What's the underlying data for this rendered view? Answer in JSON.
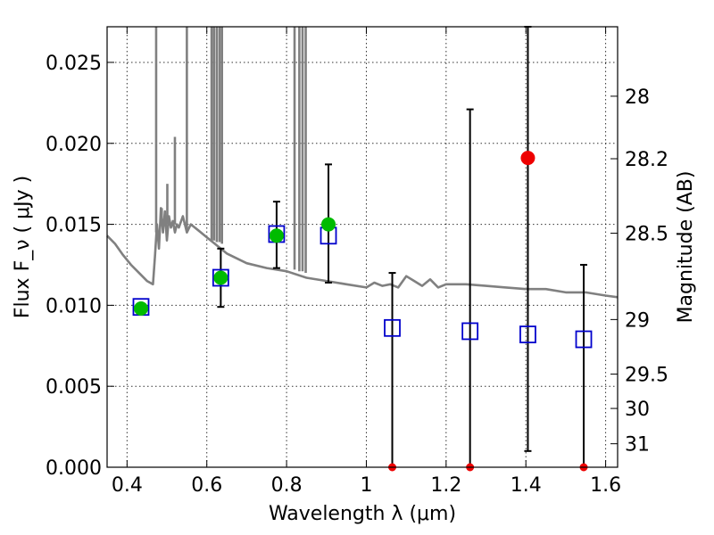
{
  "chart_data": {
    "type": "scatter",
    "title": "",
    "xlabel": "Wavelength  λ (μm)",
    "ylabel": "Flux  F_ν  ( μJy )",
    "ylabel_right": "Magnitude (AB)",
    "xlim": [
      0.35,
      1.63
    ],
    "ylim": [
      0.0,
      0.0272
    ],
    "grid": true,
    "x_ticks": [
      {
        "value": 0.4,
        "label": "0.4"
      },
      {
        "value": 0.6,
        "label": "0.6"
      },
      {
        "value": 0.8,
        "label": "0.8"
      },
      {
        "value": 1.0,
        "label": "1"
      },
      {
        "value": 1.2,
        "label": "1.2"
      },
      {
        "value": 1.4,
        "label": "1.4"
      },
      {
        "value": 1.6,
        "label": "1.6"
      }
    ],
    "y_ticks": [
      {
        "value": 0.0,
        "label": "0.000"
      },
      {
        "value": 0.005,
        "label": "0.005"
      },
      {
        "value": 0.01,
        "label": "0.010"
      },
      {
        "value": 0.015,
        "label": "0.015"
      },
      {
        "value": 0.02,
        "label": "0.020"
      },
      {
        "value": 0.025,
        "label": "0.025"
      }
    ],
    "right_ticks": [
      {
        "flux": 0.02291,
        "label": "28"
      },
      {
        "flux": 0.01905,
        "label": "28.2"
      },
      {
        "flux": 0.01445,
        "label": "28.5"
      },
      {
        "flux": 0.00912,
        "label": "29"
      },
      {
        "flux": 0.00575,
        "label": "29.5"
      },
      {
        "flux": 0.00363,
        "label": "30"
      },
      {
        "flux": 0.00145,
        "label": "31"
      }
    ],
    "series": [
      {
        "marker": "square-open",
        "color": "#0000cc",
        "x": [
          0.435,
          0.635,
          0.775,
          0.905,
          1.065,
          1.26,
          1.405,
          1.545
        ],
        "y": [
          0.0099,
          0.0117,
          0.0144,
          0.0143,
          0.0086,
          0.0084,
          0.0082,
          0.0079
        ]
      },
      {
        "marker": "circle",
        "color": "#00bb00",
        "x": [
          0.435,
          0.635,
          0.775,
          0.905
        ],
        "y": [
          0.0098,
          0.0117,
          0.0143,
          0.015
        ],
        "yerr_low": [
          0.0098,
          0.0099,
          0.0123,
          0.0114
        ],
        "yerr_high": [
          0.0098,
          0.0135,
          0.0164,
          0.0187
        ]
      },
      {
        "marker": "circle",
        "color": "#ee0000",
        "x": [
          1.065,
          1.26,
          1.405,
          1.545
        ],
        "y": [
          0.0,
          0.0,
          0.0191,
          0.0
        ],
        "yerr_low": [
          0.0,
          0.0,
          0.001,
          0.0
        ],
        "yerr_high": [
          0.012,
          0.0221,
          0.0272,
          0.0125
        ]
      },
      {
        "marker": "line",
        "color": "#808080",
        "x": [
          0.35,
          0.37,
          0.39,
          0.41,
          0.43,
          0.45,
          0.465,
          0.47,
          0.475,
          0.48,
          0.485,
          0.49,
          0.495,
          0.5,
          0.505,
          0.51,
          0.515,
          0.52,
          0.525,
          0.53,
          0.54,
          0.55,
          0.56,
          0.58,
          0.6,
          0.62,
          0.65,
          0.7,
          0.75,
          0.8,
          0.85,
          0.9,
          0.95,
          1.0,
          1.02,
          1.04,
          1.06,
          1.08,
          1.1,
          1.12,
          1.14,
          1.16,
          1.18,
          1.2,
          1.25,
          1.3,
          1.35,
          1.4,
          1.45,
          1.5,
          1.55,
          1.6,
          1.63
        ],
        "y": [
          0.0143,
          0.0138,
          0.0131,
          0.0125,
          0.012,
          0.0115,
          0.0113,
          0.013,
          0.015,
          0.0135,
          0.016,
          0.0145,
          0.0158,
          0.014,
          0.0155,
          0.0148,
          0.0152,
          0.0145,
          0.015,
          0.0148,
          0.0155,
          0.0145,
          0.015,
          0.0146,
          0.0142,
          0.0138,
          0.0132,
          0.0126,
          0.0123,
          0.0121,
          0.0117,
          0.0115,
          0.0113,
          0.0111,
          0.0114,
          0.0112,
          0.0113,
          0.0111,
          0.0118,
          0.0115,
          0.0112,
          0.0116,
          0.0111,
          0.0113,
          0.0113,
          0.0112,
          0.0111,
          0.011,
          0.011,
          0.0108,
          0.0108,
          0.0106,
          0.0105
        ]
      },
      {
        "marker": "emission-lines",
        "color": "#808080",
        "x": [
          0.473,
          0.487,
          0.501,
          0.52,
          0.55,
          0.612,
          0.618,
          0.625,
          0.632,
          0.638,
          0.82,
          0.832,
          0.84,
          0.848
        ],
        "y_base": [
          0.0145,
          0.015,
          0.015,
          0.015,
          0.0145,
          0.014,
          0.014,
          0.0139,
          0.0139,
          0.0138,
          0.0122,
          0.0121,
          0.0121,
          0.012
        ],
        "y_top": [
          0.0272,
          0.016,
          0.0175,
          0.0204,
          0.0272,
          0.0272,
          0.0272,
          0.0272,
          0.0272,
          0.0272,
          0.0272,
          0.0272,
          0.0272,
          0.0272
        ]
      }
    ]
  }
}
